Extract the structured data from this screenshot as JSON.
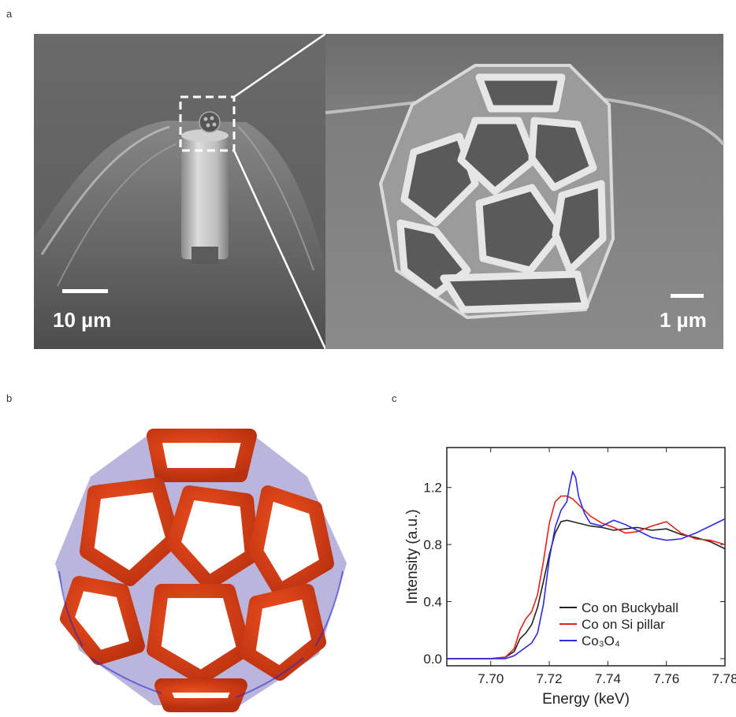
{
  "panels": {
    "a": {
      "letter": "a",
      "left_scale": "10 µm",
      "right_scale": "1 µm"
    },
    "b": {
      "letter": "b"
    },
    "c": {
      "letter": "c"
    }
  },
  "chart_data": {
    "type": "line",
    "xlabel": "Energy (keV)",
    "ylabel": "Intensity (a.u.)",
    "xlim": [
      7.685,
      7.78
    ],
    "ylim": [
      -0.05,
      1.48
    ],
    "xticks": [
      7.7,
      7.72,
      7.74,
      7.76,
      7.78
    ],
    "xtick_labels": [
      "7.70",
      "7.72",
      "7.74",
      "7.76",
      "7.78"
    ],
    "yticks": [
      0.0,
      0.4,
      0.8,
      1.2
    ],
    "ytick_labels": [
      "0.0",
      "0.4",
      "0.8",
      "1.2"
    ],
    "legend_position": "bottom-right",
    "series": [
      {
        "name": "Co on Buckyball",
        "color": "#222222",
        "x": [
          7.685,
          7.7,
          7.705,
          7.708,
          7.71,
          7.712,
          7.714,
          7.716,
          7.718,
          7.72,
          7.722,
          7.724,
          7.726,
          7.728,
          7.73,
          7.734,
          7.738,
          7.742,
          7.746,
          7.75,
          7.755,
          7.76,
          7.765,
          7.77,
          7.775,
          7.78
        ],
        "y": [
          0.0,
          0.0,
          0.01,
          0.05,
          0.14,
          0.18,
          0.24,
          0.36,
          0.54,
          0.73,
          0.88,
          0.96,
          0.97,
          0.96,
          0.95,
          0.93,
          0.92,
          0.9,
          0.91,
          0.92,
          0.9,
          0.91,
          0.87,
          0.85,
          0.82,
          0.77
        ]
      },
      {
        "name": "Co on Si pillar",
        "color": "#e8201a",
        "x": [
          7.685,
          7.7,
          7.705,
          7.708,
          7.71,
          7.712,
          7.714,
          7.716,
          7.718,
          7.72,
          7.722,
          7.724,
          7.726,
          7.728,
          7.73,
          7.734,
          7.738,
          7.742,
          7.746,
          7.75,
          7.755,
          7.76,
          7.765,
          7.77,
          7.775,
          7.78
        ],
        "y": [
          0.0,
          0.0,
          0.01,
          0.07,
          0.2,
          0.28,
          0.33,
          0.45,
          0.68,
          0.95,
          1.1,
          1.14,
          1.14,
          1.12,
          1.08,
          1.0,
          0.95,
          0.92,
          0.88,
          0.89,
          0.93,
          0.96,
          0.88,
          0.84,
          0.83,
          0.8
        ]
      },
      {
        "name": "Co₃O₄",
        "color": "#2a2ae8",
        "x": [
          7.685,
          7.7,
          7.705,
          7.708,
          7.71,
          7.712,
          7.714,
          7.716,
          7.718,
          7.72,
          7.722,
          7.724,
          7.726,
          7.727,
          7.728,
          7.729,
          7.73,
          7.732,
          7.734,
          7.738,
          7.742,
          7.746,
          7.75,
          7.755,
          7.76,
          7.765,
          7.77,
          7.775,
          7.78
        ],
        "y": [
          0.0,
          0.0,
          0.0,
          0.02,
          0.05,
          0.08,
          0.11,
          0.18,
          0.38,
          0.7,
          0.92,
          1.04,
          1.1,
          1.22,
          1.31,
          1.27,
          1.14,
          1.02,
          0.95,
          0.93,
          0.97,
          0.94,
          0.9,
          0.85,
          0.83,
          0.84,
          0.88,
          0.93,
          0.98
        ]
      }
    ]
  }
}
